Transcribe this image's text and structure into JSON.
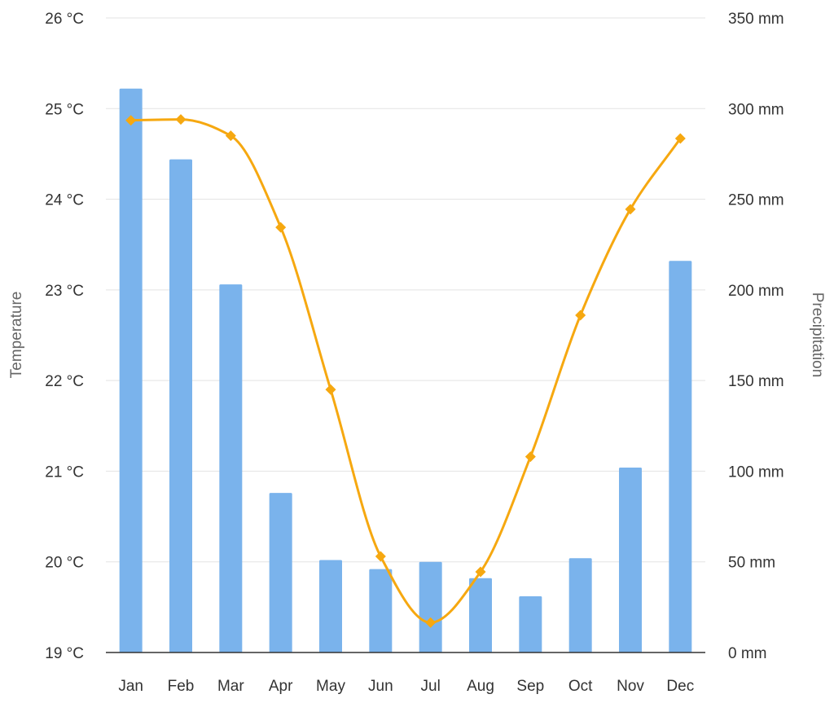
{
  "chart_data": {
    "type": "bar+line",
    "categories": [
      "Jan",
      "Feb",
      "Mar",
      "Apr",
      "May",
      "Jun",
      "Jul",
      "Aug",
      "Sep",
      "Oct",
      "Nov",
      "Dec"
    ],
    "series": [
      {
        "kind": "bar",
        "axis": "right",
        "values": [
          311,
          272,
          203,
          88,
          51,
          46,
          50,
          41,
          31,
          52,
          102,
          216
        ],
        "color": "#7ab3ec"
      },
      {
        "kind": "line",
        "axis": "left",
        "values": [
          24.87,
          24.88,
          24.7,
          23.69,
          21.9,
          20.06,
          19.33,
          19.89,
          21.16,
          22.72,
          23.89,
          24.67
        ],
        "color": "#f6a810",
        "marker": "diamond",
        "smooth": true
      }
    ],
    "y_left": {
      "label": "Temperature",
      "ylim": [
        19,
        26
      ],
      "ticks": [
        "19 °C",
        "20 °C",
        "21 °C",
        "22 °C",
        "23 °C",
        "24 °C",
        "25 °C",
        "26 °C"
      ]
    },
    "y_right": {
      "label": "Precipitation",
      "ylim": [
        0,
        350
      ],
      "ticks": [
        "0 mm",
        "50 mm",
        "100 mm",
        "150 mm",
        "200 mm",
        "250 mm",
        "300 mm",
        "350 mm"
      ]
    },
    "grid": true,
    "legend": "none"
  }
}
